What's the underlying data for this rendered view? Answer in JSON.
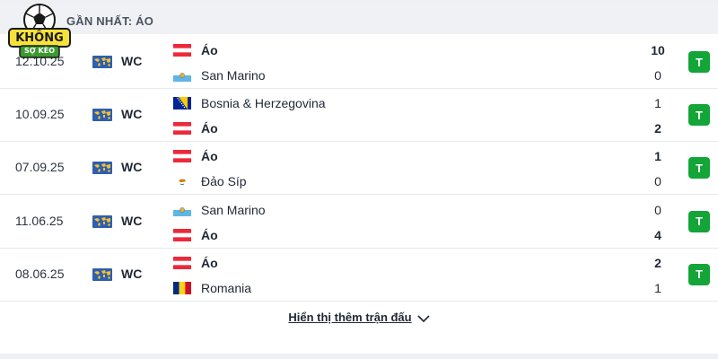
{
  "header": {
    "title": "GẦN NHẤT: ÁO"
  },
  "logo": {
    "text_top": "KHÔNG",
    "text_bottom": "SỢ KÈO",
    "icon": "soccer-ball-icon"
  },
  "colors": {
    "result_win": "#13a538",
    "divider": "#e6e8ec"
  },
  "matches": [
    {
      "date": "12.10.25",
      "competition": "WC",
      "competition_icon": "world-map-icon",
      "home": {
        "name": "Áo",
        "flag": "austria",
        "bold": true,
        "score": "10"
      },
      "away": {
        "name": "San Marino",
        "flag": "san-marino",
        "bold": false,
        "score": "0"
      },
      "result": "T"
    },
    {
      "date": "10.09.25",
      "competition": "WC",
      "competition_icon": "world-map-icon",
      "home": {
        "name": "Bosnia & Herzegovina",
        "flag": "bosnia",
        "bold": false,
        "score": "1"
      },
      "away": {
        "name": "Áo",
        "flag": "austria",
        "bold": true,
        "score": "2"
      },
      "result": "T"
    },
    {
      "date": "07.09.25",
      "competition": "WC",
      "competition_icon": "world-map-icon",
      "home": {
        "name": "Áo",
        "flag": "austria",
        "bold": true,
        "score": "1"
      },
      "away": {
        "name": "Đảo Síp",
        "flag": "cyprus",
        "bold": false,
        "score": "0"
      },
      "result": "T"
    },
    {
      "date": "11.06.25",
      "competition": "WC",
      "competition_icon": "world-map-icon",
      "home": {
        "name": "San Marino",
        "flag": "san-marino",
        "bold": false,
        "score": "0"
      },
      "away": {
        "name": "Áo",
        "flag": "austria",
        "bold": true,
        "score": "4"
      },
      "result": "T"
    },
    {
      "date": "08.06.25",
      "competition": "WC",
      "competition_icon": "world-map-icon",
      "home": {
        "name": "Áo",
        "flag": "austria",
        "bold": true,
        "score": "2"
      },
      "away": {
        "name": "Romania",
        "flag": "romania",
        "bold": false,
        "score": "1"
      },
      "result": "T"
    }
  ],
  "footer": {
    "more_label": "Hiển thị thêm trận đấu",
    "icon": "chevron-down-icon"
  }
}
